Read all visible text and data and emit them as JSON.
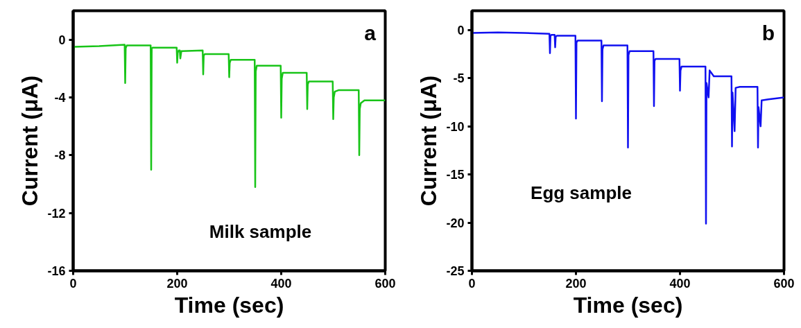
{
  "chart_data": [
    {
      "type": "line",
      "xlabel": "Time (sec)",
      "ylabel": "Current (μA)",
      "annotations": [
        "a",
        "Milk sample"
      ],
      "xlim": [
        0,
        600
      ],
      "ylim": [
        -16,
        2
      ],
      "xticks": [
        0,
        200,
        400,
        600
      ],
      "yticks": [
        0,
        -4,
        -8,
        -12,
        -16
      ],
      "grid": false,
      "marker": "none",
      "line_style": "solid",
      "series": [
        {
          "color": "#18c418",
          "x": [
            0,
            2,
            50,
            99,
            100,
            101,
            103,
            149,
            150,
            151,
            153,
            199,
            200,
            201,
            203,
            205,
            206,
            208,
            249,
            250,
            251,
            253,
            299,
            300,
            301,
            303,
            349,
            350,
            351,
            353,
            360,
            399,
            400,
            401,
            403,
            449,
            450,
            451,
            453,
            499,
            500,
            501,
            503,
            510,
            549,
            550,
            551,
            553,
            560,
            600
          ],
          "values": [
            -0.8,
            -0.5,
            -0.45,
            -0.35,
            -3.0,
            -0.6,
            -0.4,
            -0.4,
            -9.0,
            -0.6,
            -0.55,
            -0.55,
            -1.6,
            -0.9,
            -0.75,
            -0.75,
            -1.3,
            -0.8,
            -0.75,
            -2.4,
            -1.1,
            -1.0,
            -1.0,
            -2.6,
            -1.6,
            -1.4,
            -1.4,
            -10.2,
            -2.2,
            -1.8,
            -1.8,
            -1.8,
            -5.4,
            -2.7,
            -2.3,
            -2.3,
            -4.8,
            -3.1,
            -2.9,
            -2.9,
            -5.5,
            -4.0,
            -3.6,
            -3.5,
            -3.5,
            -8.0,
            -4.8,
            -4.4,
            -4.2,
            -4.2
          ]
        }
      ]
    },
    {
      "type": "line",
      "xlabel": "Time (sec)",
      "ylabel": "Current (μA)",
      "annotations": [
        "b",
        "Egg sample"
      ],
      "xlim": [
        0,
        600
      ],
      "ylim": [
        -25,
        2
      ],
      "xticks": [
        0,
        200,
        400,
        600
      ],
      "yticks": [
        0,
        -5,
        -10,
        -15,
        -20,
        -25
      ],
      "grid": false,
      "marker": "none",
      "line_style": "solid",
      "series": [
        {
          "color": "#1010f0",
          "x": [
            0,
            50,
            100,
            149,
            150,
            151,
            153,
            159,
            160,
            161,
            163,
            199,
            200,
            201,
            203,
            249,
            250,
            251,
            253,
            299,
            300,
            301,
            303,
            349,
            350,
            351,
            353,
            399,
            400,
            401,
            403,
            449,
            450,
            451,
            455,
            457,
            465,
            499,
            500,
            501,
            505,
            507,
            515,
            549,
            550,
            551,
            555,
            557,
            570,
            600
          ],
          "values": [
            -0.3,
            -0.25,
            -0.3,
            -0.4,
            -2.4,
            -0.6,
            -0.5,
            -0.5,
            -1.8,
            -0.7,
            -0.6,
            -0.6,
            -9.2,
            -1.3,
            -1.1,
            -1.1,
            -7.4,
            -2.0,
            -1.6,
            -1.6,
            -12.2,
            -2.6,
            -2.2,
            -2.2,
            -7.9,
            -3.2,
            -3.0,
            -3.0,
            -6.3,
            -4.2,
            -3.8,
            -3.8,
            -20.1,
            -5.5,
            -7.0,
            -4.2,
            -4.8,
            -4.8,
            -12.1,
            -6.5,
            -10.5,
            -6.0,
            -5.9,
            -5.9,
            -12.2,
            -8.0,
            -10.0,
            -7.3,
            -7.2,
            -7.0
          ]
        }
      ]
    }
  ]
}
